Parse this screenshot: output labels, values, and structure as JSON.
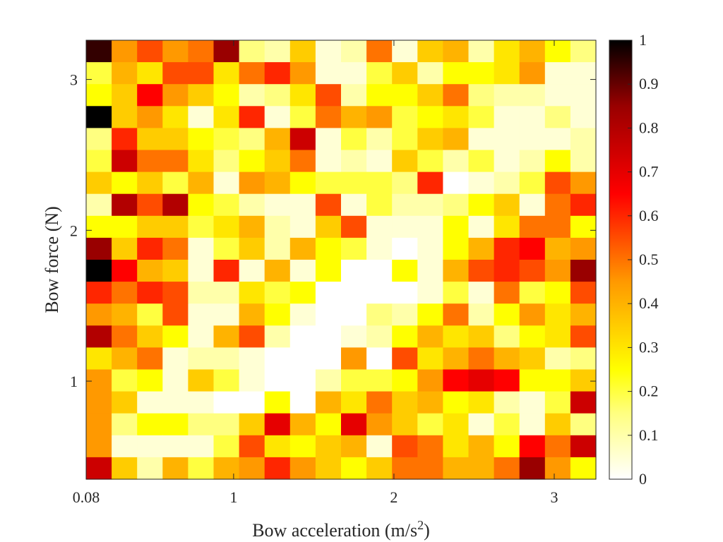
{
  "chart_data": {
    "type": "heatmap",
    "title": "",
    "xlabel": {
      "text": "Bow acceleration (m/s",
      "sup": "2",
      "suffix": ")"
    },
    "ylabel": "Bow force (N)",
    "x_range": [
      0.08,
      3.26
    ],
    "y_range": [
      0.35,
      3.26
    ],
    "x_ticks": [
      {
        "value": 0.08,
        "label": "0.08"
      },
      {
        "value": 1,
        "label": "1"
      },
      {
        "value": 2,
        "label": "2"
      },
      {
        "value": 3,
        "label": "3"
      }
    ],
    "y_ticks": [
      {
        "value": 1,
        "label": "1"
      },
      {
        "value": 2,
        "label": "2"
      },
      {
        "value": 3,
        "label": "3"
      }
    ],
    "colorbar": {
      "colormap": "hot (reversed)",
      "range": [
        0,
        1
      ],
      "ticks": [
        "0",
        "0.1",
        "0.2",
        "0.3",
        "0.4",
        "0.5",
        "0.6",
        "0.7",
        "0.8",
        "0.9",
        "1"
      ]
    },
    "grid": false,
    "rows_top_to_bottom": [
      [
        0.95,
        0.45,
        0.55,
        0.45,
        0.5,
        0.85,
        0.15,
        0.1,
        0.35,
        0.05,
        0.1,
        0.5,
        0.05,
        0.35,
        0.4,
        0.1,
        0.3,
        0.4,
        0.25,
        0.15
      ],
      [
        0.2,
        0.4,
        0.3,
        0.55,
        0.55,
        0.3,
        0.5,
        0.6,
        0.45,
        0.05,
        0.05,
        0.2,
        0.35,
        0.1,
        0.25,
        0.25,
        0.3,
        0.45,
        0.05,
        0.05
      ],
      [
        0.25,
        0.35,
        0.65,
        0.45,
        0.35,
        0.25,
        0.1,
        0.15,
        0.3,
        0.55,
        0.1,
        0.25,
        0.25,
        0.35,
        0.5,
        0.15,
        0.1,
        0.1,
        0.05,
        0.05
      ],
      [
        1.0,
        0.35,
        0.45,
        0.3,
        0.05,
        0.3,
        0.6,
        0.05,
        0.2,
        0.5,
        0.4,
        0.45,
        0.2,
        0.25,
        0.3,
        0.2,
        0.05,
        0.05,
        0.15,
        0.05
      ],
      [
        0.15,
        0.6,
        0.35,
        0.35,
        0.25,
        0.2,
        0.15,
        0.4,
        0.75,
        0.05,
        0.2,
        0.1,
        0.2,
        0.35,
        0.4,
        0.05,
        0.05,
        0.05,
        0.05,
        0.1
      ],
      [
        0.2,
        0.75,
        0.5,
        0.5,
        0.3,
        0.15,
        0.25,
        0.35,
        0.5,
        0.05,
        0.1,
        0.05,
        0.35,
        0.2,
        0.1,
        0.2,
        0.05,
        0.1,
        0.25,
        0.1
      ],
      [
        0.35,
        0.25,
        0.35,
        0.2,
        0.4,
        0.05,
        0.45,
        0.4,
        0.25,
        0.2,
        0.2,
        0.2,
        0.15,
        0.6,
        0.0,
        0.05,
        0.1,
        0.2,
        0.55,
        0.45
      ],
      [
        0.1,
        0.8,
        0.55,
        0.8,
        0.25,
        0.2,
        0.1,
        0.05,
        0.05,
        0.55,
        0.05,
        0.2,
        0.1,
        0.1,
        0.15,
        0.25,
        0.35,
        0.05,
        0.5,
        0.6
      ],
      [
        0.25,
        0.25,
        0.35,
        0.35,
        0.2,
        0.3,
        0.4,
        0.1,
        0.05,
        0.35,
        0.55,
        0.05,
        0.05,
        0.05,
        0.25,
        0.05,
        0.3,
        0.5,
        0.5,
        0.25
      ],
      [
        0.85,
        0.35,
        0.6,
        0.5,
        0.05,
        0.2,
        0.35,
        0.1,
        0.4,
        0.25,
        0.2,
        0.05,
        0.0,
        0.05,
        0.25,
        0.4,
        0.6,
        0.65,
        0.4,
        0.45
      ],
      [
        1.0,
        0.65,
        0.4,
        0.35,
        0.05,
        0.6,
        0.05,
        0.4,
        0.05,
        0.25,
        0.0,
        0.0,
        0.25,
        0.05,
        0.4,
        0.55,
        0.6,
        0.55,
        0.45,
        0.85
      ],
      [
        0.6,
        0.5,
        0.6,
        0.55,
        0.1,
        0.1,
        0.3,
        0.2,
        0.25,
        0.0,
        0.0,
        0.0,
        0.0,
        0.05,
        0.2,
        0.05,
        0.5,
        0.2,
        0.25,
        0.55
      ],
      [
        0.45,
        0.4,
        0.2,
        0.55,
        0.05,
        0.05,
        0.4,
        0.25,
        0.05,
        0.0,
        0.0,
        0.15,
        0.1,
        0.25,
        0.5,
        0.1,
        0.25,
        0.45,
        0.3,
        0.4
      ],
      [
        0.8,
        0.5,
        0.35,
        0.25,
        0.05,
        0.4,
        0.55,
        0.1,
        0.0,
        0.0,
        0.05,
        0.1,
        0.25,
        0.4,
        0.3,
        0.35,
        0.15,
        0.25,
        0.3,
        0.55
      ],
      [
        0.3,
        0.4,
        0.5,
        0.05,
        0.1,
        0.1,
        0.05,
        0.0,
        0.0,
        0.0,
        0.45,
        0.0,
        0.55,
        0.3,
        0.4,
        0.5,
        0.4,
        0.35,
        0.1,
        0.15
      ],
      [
        0.45,
        0.2,
        0.25,
        0.05,
        0.35,
        0.2,
        0.05,
        0.0,
        0.0,
        0.1,
        0.2,
        0.2,
        0.25,
        0.45,
        0.65,
        0.7,
        0.65,
        0.25,
        0.25,
        0.35
      ],
      [
        0.45,
        0.35,
        0.05,
        0.05,
        0.05,
        0.0,
        0.0,
        0.25,
        0.0,
        0.4,
        0.3,
        0.5,
        0.35,
        0.4,
        0.25,
        0.3,
        0.1,
        0.05,
        0.2,
        0.75
      ],
      [
        0.45,
        0.15,
        0.25,
        0.25,
        0.15,
        0.15,
        0.35,
        0.7,
        0.4,
        0.25,
        0.7,
        0.45,
        0.35,
        0.2,
        0.3,
        0.05,
        0.2,
        0.05,
        0.35,
        0.15
      ],
      [
        0.45,
        0.05,
        0.05,
        0.05,
        0.05,
        0.2,
        0.55,
        0.3,
        0.25,
        0.35,
        0.4,
        0.05,
        0.55,
        0.5,
        0.3,
        0.4,
        0.25,
        0.65,
        0.5,
        0.75
      ],
      [
        0.75,
        0.35,
        0.1,
        0.4,
        0.2,
        0.4,
        0.45,
        0.6,
        0.45,
        0.35,
        0.25,
        0.35,
        0.5,
        0.5,
        0.4,
        0.4,
        0.5,
        0.85,
        0.45,
        0.25
      ]
    ]
  }
}
